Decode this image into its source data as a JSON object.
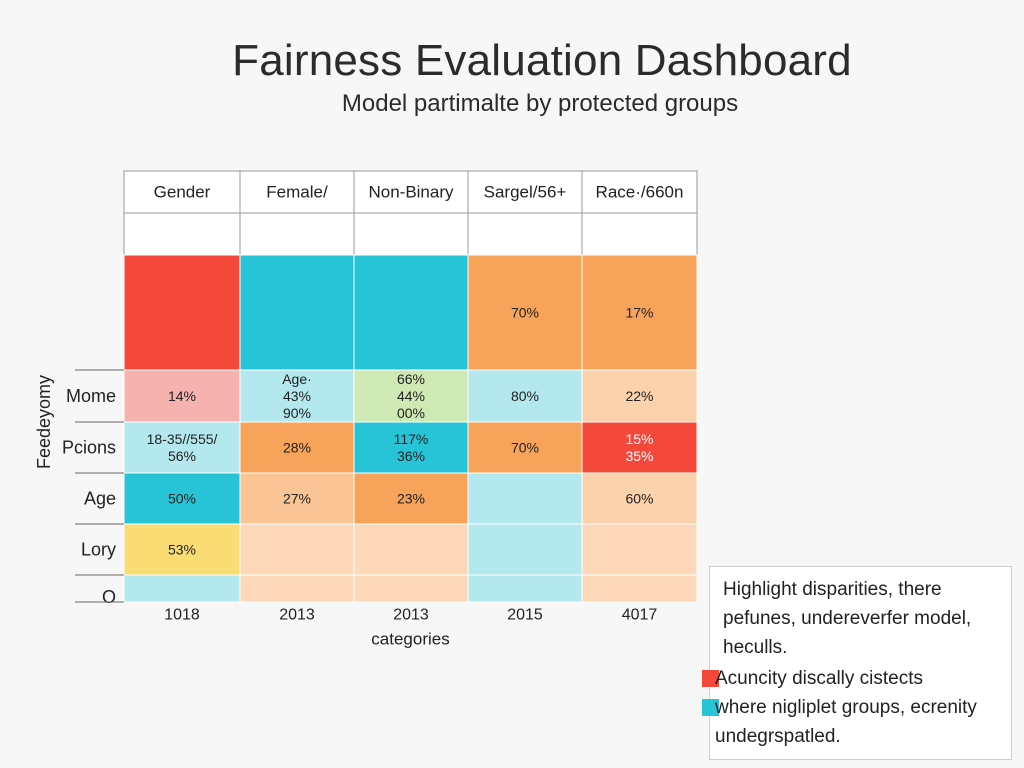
{
  "page": {
    "title": "Fairness Evaluation Dashboard",
    "subtitle": "Model partimalte by protected groups"
  },
  "chart_data": {
    "type": "heatmap",
    "title": "Fairness Evaluation Dashboard",
    "subtitle": "Model partimalte by protected groups",
    "xlabel": "categories",
    "ylabel": "Feedeyomy",
    "column_headers": [
      "Gender",
      "Female/",
      "Non-Binary",
      "Sargel/56+",
      "Race·/660n"
    ],
    "x_tick_labels": [
      "1018",
      "2013",
      "2013",
      "2015",
      "4017"
    ],
    "row_labels": [
      "",
      "",
      "Mome",
      "Pcions",
      "Age",
      "Lory",
      "O"
    ],
    "cells": [
      [
        {
          "color": "#ffffff",
          "lines": []
        },
        {
          "color": "#ffffff",
          "lines": []
        },
        {
          "color": "#ffffff",
          "lines": []
        },
        {
          "color": "#ffffff",
          "lines": []
        },
        {
          "color": "#ffffff",
          "lines": []
        }
      ],
      [
        {
          "color": "#f4483a",
          "lines": []
        },
        {
          "color": "#27c4d8",
          "lines": []
        },
        {
          "color": "#27c4d8",
          "lines": []
        },
        {
          "color": "#f7a35a",
          "lines": [
            "70%"
          ]
        },
        {
          "color": "#f7a35a",
          "lines": [
            "17%"
          ]
        }
      ],
      [
        {
          "color": "#f5b2ae",
          "lines": [
            "14%"
          ]
        },
        {
          "color": "#b3e8ee",
          "lines": [
            "Age·",
            "43%",
            "90%"
          ]
        },
        {
          "color": "#cfe9b4",
          "lines": [
            "66%",
            "44%",
            "00%"
          ]
        },
        {
          "color": "#b3e8ee",
          "lines": [
            "80%"
          ]
        },
        {
          "color": "#fbd2ab",
          "lines": [
            "22%"
          ]
        }
      ],
      [
        {
          "color": "#b3e8ee",
          "lines": [
            "18-35//555/",
            "56%"
          ]
        },
        {
          "color": "#f7a35a",
          "lines": [
            "28%"
          ]
        },
        {
          "color": "#27c4d8",
          "lines": [
            "117%",
            "36%"
          ]
        },
        {
          "color": "#f7a35a",
          "lines": [
            "70%"
          ]
        },
        {
          "color": "#f4483a",
          "lines": [
            "15%",
            "35%"
          ],
          "text_color": "#ffffff"
        }
      ],
      [
        {
          "color": "#27c4d8",
          "lines": [
            "50%"
          ]
        },
        {
          "color": "#fbc495",
          "lines": [
            "27%"
          ]
        },
        {
          "color": "#f7a35a",
          "lines": [
            "23%"
          ]
        },
        {
          "color": "#b3e8ee",
          "lines": []
        },
        {
          "color": "#fbd2ab",
          "lines": [
            "60%"
          ]
        }
      ],
      [
        {
          "color": "#f9dd74",
          "lines": [
            "53%"
          ]
        },
        {
          "color": "#fcd8b8",
          "lines": []
        },
        {
          "color": "#fcd8b8",
          "lines": []
        },
        {
          "color": "#b3e8ee",
          "lines": []
        },
        {
          "color": "#fcd8b8",
          "lines": []
        }
      ],
      [
        {
          "color": "#b3e8ee",
          "lines": []
        },
        {
          "color": "#fcd8b8",
          "lines": []
        },
        {
          "color": "#fcd8b8",
          "lines": []
        },
        {
          "color": "#b3e8ee",
          "lines": []
        },
        {
          "color": "#fcd8b8",
          "lines": []
        }
      ]
    ],
    "grid": true
  },
  "legend": {
    "note": "Highlight disparities, there pefunes, undereverfer model, heculls.",
    "items": [
      {
        "label": "Acuncity discally cistects",
        "color": "#f4483a"
      },
      {
        "label": "where nigliplet groups, ecrenity undegrspatled.",
        "color": "#27c4d8"
      }
    ]
  }
}
